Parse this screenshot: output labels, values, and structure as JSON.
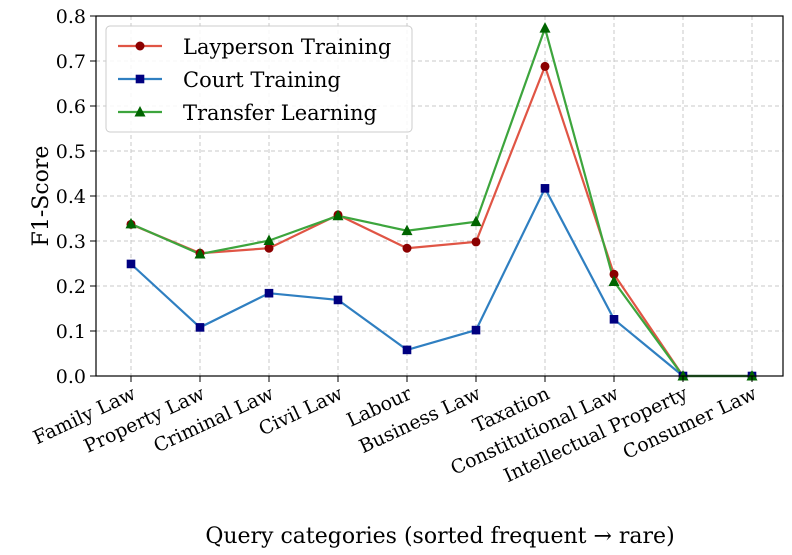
{
  "chart_data": {
    "type": "line",
    "xlabel": "Query categories (sorted frequent → rare)",
    "ylabel": "F1-Score",
    "ylim": [
      0.0,
      0.8
    ],
    "yticks": [
      "0.0",
      "0.1",
      "0.2",
      "0.3",
      "0.4",
      "0.5",
      "0.6",
      "0.7",
      "0.8"
    ],
    "grid": true,
    "legend_position": "top-left",
    "categories": [
      "Family Law",
      "Property Law",
      "Criminal Law",
      "Civil Law",
      "Labour",
      "Business Law",
      "Taxation",
      "Constitutional Law",
      "Intellectual Property",
      "Consumer Law"
    ],
    "series": [
      {
        "name": "Layperson Training",
        "color": "#e05545",
        "marker_color": "#8b0000",
        "marker": "circle",
        "values": [
          0.337,
          0.273,
          0.284,
          0.358,
          0.284,
          0.298,
          0.688,
          0.226,
          0.0,
          0.0
        ]
      },
      {
        "name": "Court Training",
        "color": "#2f7fc1",
        "marker_color": "#000080",
        "marker": "square",
        "values": [
          0.249,
          0.108,
          0.184,
          0.169,
          0.058,
          0.102,
          0.417,
          0.126,
          0.0,
          0.0
        ]
      },
      {
        "name": "Transfer Learning",
        "color": "#3da53d",
        "marker_color": "#006400",
        "marker": "triangle",
        "values": [
          0.338,
          0.271,
          0.301,
          0.356,
          0.323,
          0.343,
          0.773,
          0.21,
          0.0,
          0.0
        ]
      }
    ]
  }
}
